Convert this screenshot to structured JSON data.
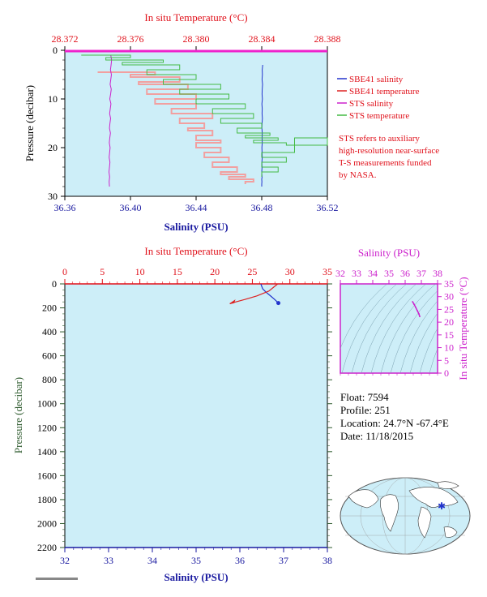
{
  "chart_data": [
    {
      "type": "line",
      "title": "",
      "top_axis": {
        "label": "In situ Temperature (°C)",
        "ticks": [
          "28.372",
          "28.376",
          "28.380",
          "28.384",
          "28.388"
        ],
        "range": [
          28.372,
          28.388
        ],
        "color": "#e0101a"
      },
      "bottom_axis": {
        "label": "Salinity (PSU)",
        "ticks": [
          "36.36",
          "36.40",
          "36.44",
          "36.48",
          "36.52"
        ],
        "range": [
          36.36,
          36.52
        ],
        "color": "#1a1aa0"
      },
      "y_axis": {
        "label": "Pressure (decibar)",
        "ticks": [
          "0",
          "10",
          "20",
          "30"
        ],
        "range": [
          0,
          30
        ],
        "inverted": true
      },
      "legend": [
        {
          "name": "SBE41 salinity",
          "color": "#2233cc"
        },
        {
          "name": "SBE41 temperature",
          "color": "#dd2222"
        },
        {
          "name": "STS salinity",
          "color": "#cc22cc"
        },
        {
          "name": "STS temperature",
          "color": "#44bb44"
        }
      ],
      "note": "STS refers to auxiliary high-resolution near-surface T-S measurements funded by NASA.",
      "series": [
        {
          "name": "SBE41 salinity",
          "x": [
            36.4806,
            36.4803,
            36.4804,
            36.4802,
            36.4805,
            36.4803,
            36.4802,
            36.4804,
            36.4801,
            36.4803,
            36.4802,
            36.4804,
            36.4802,
            36.4801,
            36.4803,
            36.4802,
            36.4803,
            36.4801,
            36.4802,
            36.4803,
            36.4801,
            36.4802,
            36.48,
            36.4801,
            36.4802,
            36.48,
            36.4801,
            36.48,
            36.48
          ],
          "y": [
            3,
            4,
            5,
            6,
            7,
            8,
            9,
            10,
            11,
            12,
            13,
            14,
            15,
            16,
            17,
            18,
            19,
            20,
            21,
            22,
            23,
            24,
            25,
            25.5,
            26,
            26.5,
            27,
            27.5,
            28
          ]
        },
        {
          "name": "SBE41 temperature",
          "x": [
            28.374,
            28.3775,
            28.376,
            28.379,
            28.3765,
            28.3795,
            28.377,
            28.38,
            28.3775,
            28.38,
            28.3785,
            28.381,
            28.379,
            28.3805,
            28.3795,
            28.381,
            28.38,
            28.3815,
            28.38,
            28.3815,
            28.3805,
            28.382,
            28.381,
            28.3825,
            28.3815,
            28.383,
            28.382,
            28.3835,
            28.383
          ],
          "y": [
            4.5,
            5,
            5.5,
            6.5,
            7,
            8,
            9,
            10,
            11,
            12,
            13,
            14,
            15,
            16,
            16.5,
            17.5,
            18.5,
            19,
            20,
            21,
            22,
            23,
            24,
            25,
            25.5,
            26,
            26.5,
            27,
            27.5
          ]
        },
        {
          "name": "STS salinity",
          "x": [
            36.388,
            36.3885,
            36.3882,
            36.3878,
            36.3884,
            36.388,
            36.3876,
            36.3883,
            36.3879,
            36.3874,
            36.3881,
            36.3877,
            36.3873,
            36.3879,
            36.3875,
            36.3872,
            36.3878,
            36.3874,
            36.3871,
            36.3876,
            36.3873,
            36.387,
            36.3875,
            36.3872,
            36.3869,
            36.3873,
            36.387,
            36.3872
          ],
          "y": [
            1,
            2,
            3,
            4,
            5,
            6,
            7,
            8,
            9,
            10,
            11,
            12,
            13,
            14,
            15,
            16,
            17,
            18,
            19,
            20,
            21,
            22,
            23,
            24,
            25,
            26,
            27,
            28
          ]
        },
        {
          "name": "STS temperature",
          "x": [
            28.373,
            28.376,
            28.3745,
            28.378,
            28.3755,
            28.379,
            28.377,
            28.38,
            28.378,
            28.3815,
            28.379,
            28.382,
            28.38,
            28.383,
            28.381,
            28.3835,
            28.3815,
            28.384,
            28.3825,
            28.3845,
            28.383,
            28.385,
            28.3835,
            28.3855,
            28.388,
            28.386,
            28.384,
            28.3855,
            28.384,
            28.385,
            28.384
          ],
          "y": [
            1,
            1.5,
            2,
            2.5,
            3,
            4,
            5,
            6,
            7,
            8,
            9,
            10,
            11,
            12,
            13,
            14,
            15,
            16,
            17,
            17.5,
            18,
            18.5,
            19,
            19.5,
            18,
            21,
            22,
            23,
            24,
            25,
            26
          ]
        }
      ]
    },
    {
      "type": "line",
      "title": "",
      "top_axis": {
        "label": "In situ Temperature (°C)",
        "ticks": [
          "0",
          "5",
          "10",
          "15",
          "20",
          "25",
          "30",
          "35"
        ],
        "range": [
          0,
          35
        ],
        "color": "#e0101a"
      },
      "bottom_axis": {
        "label": "Salinity (PSU)",
        "ticks": [
          "32",
          "33",
          "34",
          "35",
          "36",
          "37",
          "38"
        ],
        "range": [
          32,
          38
        ],
        "color": "#1a1aa0"
      },
      "y_axis": {
        "label": "Pressure (decibar)",
        "ticks": [
          "0",
          "200",
          "400",
          "600",
          "800",
          "1000",
          "1200",
          "1400",
          "1600",
          "1800",
          "2000",
          "2200"
        ],
        "range": [
          0,
          2200
        ],
        "inverted": true
      },
      "series": [
        {
          "name": "Salinity",
          "x": [
            36.48,
            36.52,
            36.6,
            36.7,
            36.78,
            36.84,
            36.88
          ],
          "y": [
            0,
            40,
            70,
            100,
            125,
            145,
            160
          ]
        },
        {
          "name": "Temperature",
          "x": [
            28.38,
            27.2,
            25.6,
            24.0,
            22.8,
            22.0
          ],
          "y": [
            0,
            60,
            100,
            130,
            150,
            165
          ]
        }
      ]
    },
    {
      "type": "scatter",
      "title": "",
      "top_axis": {
        "label": "Salinity (PSU)",
        "ticks": [
          "32",
          "33",
          "34",
          "35",
          "36",
          "37",
          "38"
        ],
        "range": [
          32,
          38
        ],
        "color": "#cc22cc"
      },
      "right_axis": {
        "label": "In situ Temperature (°C)",
        "ticks": [
          "0",
          "5",
          "10",
          "15",
          "20",
          "25",
          "30",
          "35"
        ],
        "range": [
          0,
          35
        ],
        "color": "#cc22cc"
      },
      "series": [
        {
          "name": "T-S profile",
          "x": [
            36.46,
            36.55,
            36.65,
            36.75,
            36.85,
            36.9
          ],
          "y": [
            28.0,
            27.0,
            25.8,
            24.5,
            23.2,
            22.2
          ]
        }
      ]
    }
  ],
  "info": {
    "float": "Float:  7594",
    "profile": "Profile:  251",
    "location": "Location:  24.7°N  -67.4°E",
    "date": "Date:  11/18/2015"
  }
}
